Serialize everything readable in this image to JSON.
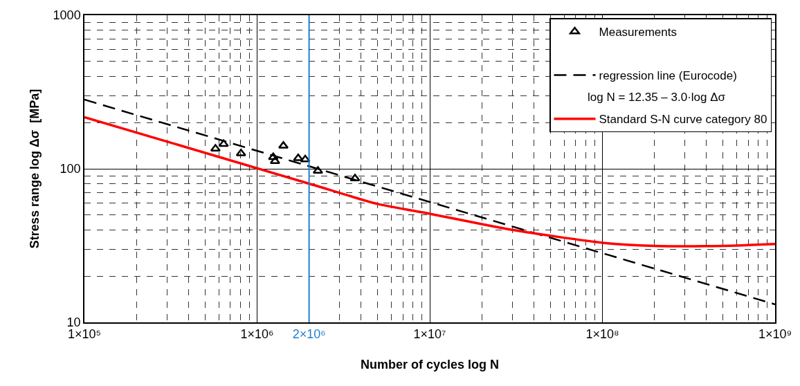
{
  "chart_data": {
    "type": "scatter",
    "xlabel": "Number of cycles log N",
    "ylabel": "Stress range log Δσ  [MPa]",
    "log": "xy",
    "xlim": [
      100000,
      1000000000
    ],
    "ylim": [
      10,
      1000
    ],
    "xticks": [
      {
        "value": 100000,
        "label": "1×10⁵"
      },
      {
        "value": 1000000,
        "label": "1×10⁶"
      },
      {
        "value": 10000000,
        "label": "1×10⁷"
      },
      {
        "value": 100000000,
        "label": "1×10⁸"
      },
      {
        "value": 1000000000,
        "label": "1×10⁹"
      }
    ],
    "yticks": [
      10,
      100,
      1000
    ],
    "grid": true,
    "legend": "top right",
    "series": [
      {
        "name": "Measurements",
        "marker": "triangle",
        "color": "#000000",
        "x": [
          574000,
          640000,
          807000,
          1240000,
          1270000,
          1420000,
          1730000,
          1900000,
          2250000,
          3690000
        ],
        "values": [
          135,
          145,
          126,
          119,
          112,
          141,
          117,
          115,
          97,
          86.5
        ]
      },
      {
        "name": "regression line (Eurocode)",
        "type": "line",
        "line_style": "dashed",
        "color": "#000000",
        "x": [
          100000,
          1000000000
        ],
        "values": [
          282,
          13.1
        ]
      },
      {
        "name": "Standard S-N curve category 80",
        "type": "line",
        "line_style": "solid",
        "color": "#ff0000",
        "x": [
          100000,
          2000000,
          5000000,
          10000000,
          30000000,
          100000000,
          200000000,
          500000000,
          1000000000
        ],
        "values": [
          217,
          80,
          59,
          51,
          40,
          33,
          31.5,
          31.5,
          32.4
        ]
      }
    ],
    "ref_lines": [
      {
        "axis": "x",
        "value": 2000000,
        "label": "2×10⁶",
        "color": "#1f7fd0"
      }
    ],
    "annotations": [
      "log N = 12.35 – 3.0·log Δσ"
    ]
  }
}
